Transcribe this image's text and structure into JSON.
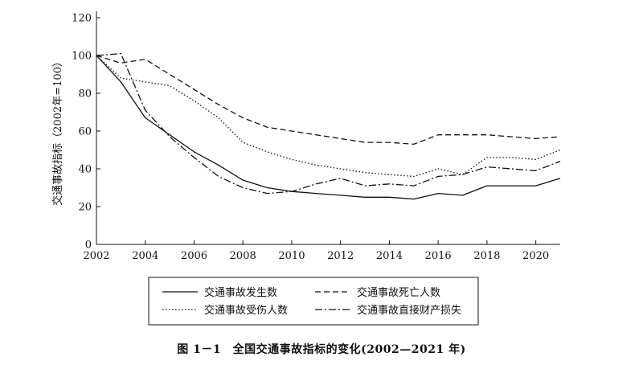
{
  "chart_data": {
    "type": "line",
    "caption": "图 1－1　全国交通事故指标的变化(2002—2021 年)",
    "ylabel": "交通事故指标（2002年=100）",
    "xlabel": "",
    "xlim": [
      2002,
      2021
    ],
    "ylim": [
      0,
      120
    ],
    "x_ticks": [
      2002,
      2004,
      2006,
      2008,
      2010,
      2012,
      2014,
      2016,
      2018,
      2020
    ],
    "y_ticks": [
      0,
      20,
      40,
      60,
      80,
      100,
      120
    ],
    "grid": false,
    "legend_position": "bottom",
    "x": [
      2002,
      2003,
      2004,
      2005,
      2006,
      2007,
      2008,
      2009,
      2010,
      2011,
      2012,
      2013,
      2014,
      2015,
      2016,
      2017,
      2018,
      2019,
      2020,
      2021
    ],
    "series": [
      {
        "name": "交通事故发生数",
        "dash": "solid",
        "values": [
          100,
          86,
          67,
          58,
          49,
          42,
          34,
          30,
          28,
          27,
          26,
          25,
          25,
          24,
          27,
          26,
          31,
          31,
          31,
          35
        ]
      },
      {
        "name": "交通事故死亡人数",
        "dash": "dashed",
        "values": [
          100,
          96,
          98,
          90,
          82,
          74,
          67,
          62,
          60,
          58,
          56,
          54,
          54,
          53,
          58,
          58,
          58,
          57,
          56,
          57
        ]
      },
      {
        "name": "交通事故受伤人数",
        "dash": "dotted",
        "values": [
          100,
          88,
          86,
          84,
          76,
          67,
          54,
          49,
          45,
          42,
          40,
          38,
          37,
          36,
          40,
          37,
          46,
          46,
          45,
          50
        ]
      },
      {
        "name": "交通事故直接财产损失",
        "dash": "dashdot",
        "values": [
          100,
          101,
          71,
          57,
          46,
          36,
          30,
          27,
          28,
          32,
          35,
          31,
          32,
          31,
          36,
          37,
          41,
          40,
          39,
          44
        ]
      }
    ]
  }
}
